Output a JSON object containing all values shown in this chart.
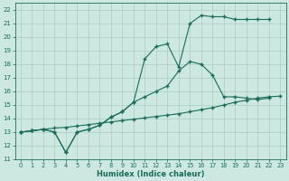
{
  "xlabel": "Humidex (Indice chaleur)",
  "bg_color": "#cce8e0",
  "grid_color": "#aaccc4",
  "line_color": "#1a6b5a",
  "xlim": [
    -0.5,
    23.5
  ],
  "ylim": [
    11,
    22.5
  ],
  "xticks": [
    0,
    1,
    2,
    3,
    4,
    5,
    6,
    7,
    8,
    9,
    10,
    11,
    12,
    13,
    14,
    15,
    16,
    17,
    18,
    19,
    20,
    21,
    22,
    23
  ],
  "yticks": [
    11,
    12,
    13,
    14,
    15,
    16,
    17,
    18,
    19,
    20,
    21,
    22
  ],
  "line1_x": [
    0,
    1,
    2,
    3,
    4,
    5,
    6,
    7,
    8,
    9,
    10,
    11,
    12,
    13,
    14,
    15,
    16,
    17,
    18,
    19,
    20,
    21,
    22
  ],
  "line1_y": [
    13.0,
    13.1,
    13.2,
    13.0,
    11.5,
    13.0,
    13.2,
    13.5,
    14.1,
    14.5,
    15.2,
    15.6,
    16.0,
    16.4,
    17.5,
    18.2,
    18.0,
    17.2,
    15.6,
    15.6,
    15.5,
    15.4,
    15.5
  ],
  "line2_x": [
    0,
    1,
    2,
    3,
    4,
    5,
    6,
    7,
    8,
    9,
    10,
    11,
    12,
    13,
    14,
    15,
    16,
    17,
    18,
    19,
    20,
    21,
    22
  ],
  "line2_y": [
    13.0,
    13.1,
    13.2,
    13.0,
    11.5,
    13.0,
    13.2,
    13.5,
    14.1,
    14.5,
    15.2,
    18.4,
    19.3,
    19.5,
    17.8,
    21.0,
    21.6,
    21.5,
    21.5,
    21.3,
    21.3,
    21.3,
    21.3
  ],
  "line3_x": [
    0,
    1,
    2,
    3,
    4,
    5,
    6,
    7,
    8,
    9,
    10,
    11,
    12,
    13,
    14,
    15,
    16,
    17,
    18,
    19,
    20,
    21,
    22,
    23
  ],
  "line3_y": [
    13.0,
    13.1,
    13.2,
    13.3,
    13.35,
    13.45,
    13.55,
    13.65,
    13.75,
    13.85,
    13.95,
    14.05,
    14.15,
    14.25,
    14.35,
    14.5,
    14.65,
    14.8,
    15.0,
    15.2,
    15.35,
    15.5,
    15.6,
    15.65
  ]
}
